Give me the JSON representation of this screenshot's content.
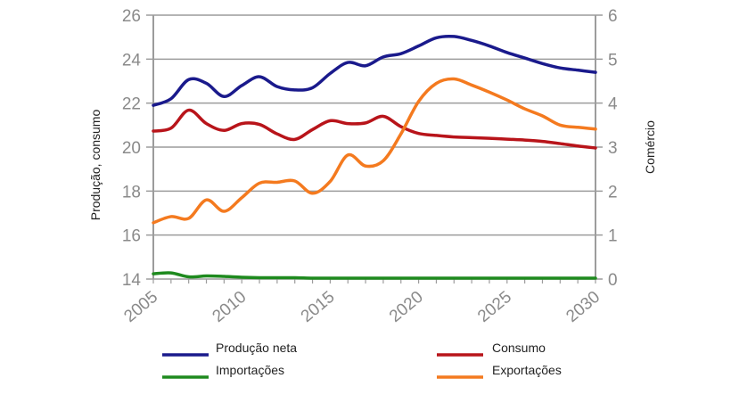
{
  "chart_data": {
    "type": "line",
    "x": [
      2005,
      2006,
      2007,
      2008,
      2009,
      2010,
      2011,
      2012,
      2013,
      2014,
      2015,
      2016,
      2017,
      2018,
      2019,
      2020,
      2021,
      2022,
      2023,
      2024,
      2025,
      2026,
      2027,
      2028,
      2029,
      2030
    ],
    "xticks": [
      "2005",
      "2010",
      "2015",
      "2020",
      "2025",
      "2030"
    ],
    "ylabel": "Produção, consumo",
    "ylabel_right": "Comércio",
    "ylim": [
      14,
      26
    ],
    "yticks": [
      "14",
      "16",
      "18",
      "20",
      "22",
      "24",
      "26"
    ],
    "ylim_right": [
      0,
      6
    ],
    "yticks_right": [
      "0",
      "1",
      "2",
      "3",
      "4",
      "5",
      "6"
    ],
    "grid": true,
    "legend_position": "bottom",
    "series": [
      {
        "name": "Produção neta",
        "axis": "left",
        "color": "#1a1a8c",
        "values": [
          21.9,
          22.2,
          23.07,
          22.9,
          22.3,
          22.8,
          23.2,
          22.75,
          22.6,
          22.7,
          23.35,
          23.85,
          23.7,
          24.1,
          24.25,
          24.6,
          24.97,
          25.03,
          24.85,
          24.6,
          24.3,
          24.05,
          23.8,
          23.6,
          23.5,
          23.4
        ]
      },
      {
        "name": "Consumo",
        "axis": "left",
        "color": "#b8141a",
        "values": [
          20.73,
          20.86,
          21.68,
          21.07,
          20.76,
          21.07,
          21.03,
          20.6,
          20.35,
          20.8,
          21.2,
          21.07,
          21.1,
          21.4,
          20.93,
          20.62,
          20.53,
          20.46,
          20.43,
          20.4,
          20.36,
          20.32,
          20.26,
          20.16,
          20.05,
          19.96
        ]
      },
      {
        "name": "Importações",
        "axis": "right",
        "color": "#1e8a1e",
        "values": [
          0.12,
          0.14,
          0.05,
          0.07,
          0.06,
          0.04,
          0.03,
          0.03,
          0.03,
          0.02,
          0.02,
          0.02,
          0.02,
          0.02,
          0.02,
          0.02,
          0.02,
          0.02,
          0.02,
          0.02,
          0.02,
          0.02,
          0.02,
          0.02,
          0.02,
          0.02
        ]
      },
      {
        "name": "Exportações",
        "axis": "right",
        "color": "#f47a1f",
        "values": [
          1.28,
          1.42,
          1.38,
          1.8,
          1.54,
          1.85,
          2.18,
          2.2,
          2.23,
          1.95,
          2.22,
          2.82,
          2.57,
          2.69,
          3.3,
          4.04,
          4.45,
          4.55,
          4.41,
          4.25,
          4.07,
          3.87,
          3.71,
          3.5,
          3.45,
          3.41
        ]
      }
    ]
  }
}
